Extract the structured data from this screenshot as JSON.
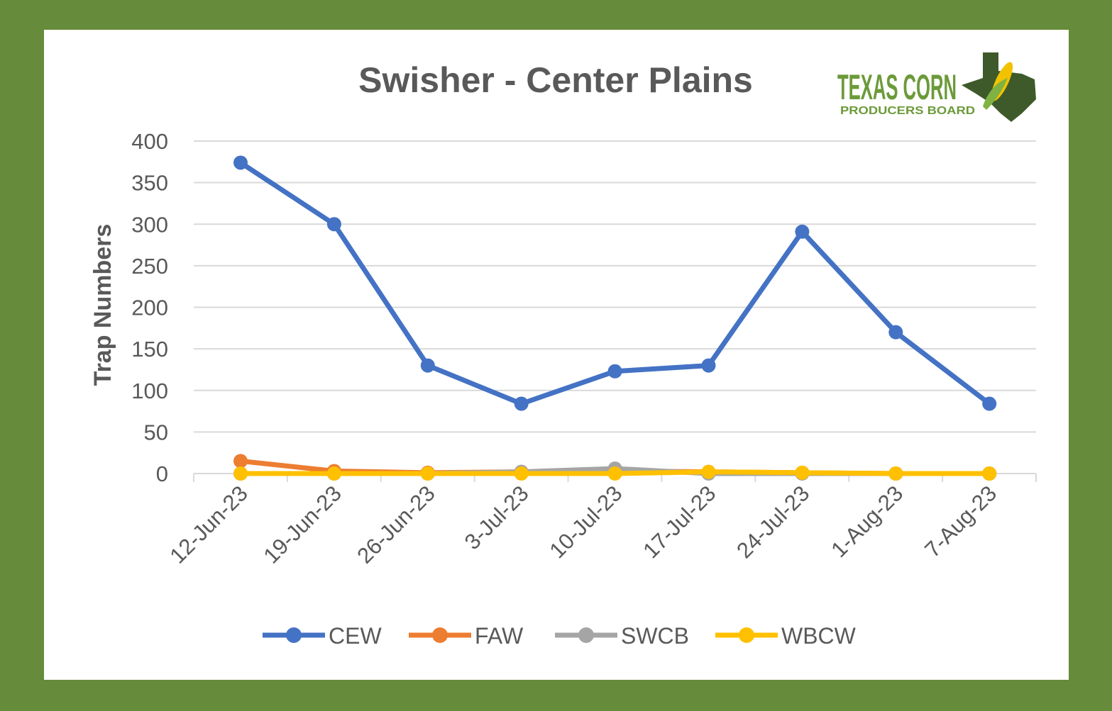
{
  "logo": {
    "line1": "TEXAS CORN",
    "line2": "PRODUCERS BOARD"
  },
  "chart_data": {
    "type": "line",
    "title": "Swisher - Center Plains",
    "xlabel": "",
    "ylabel": "Trap Numbers",
    "ylim": [
      0,
      400
    ],
    "yticks": [
      0,
      50,
      100,
      150,
      200,
      250,
      300,
      350,
      400
    ],
    "grid": true,
    "legend_position": "bottom",
    "categories": [
      "12-Jun-23",
      "19-Jun-23",
      "26-Jun-23",
      "3-Jul-23",
      "10-Jul-23",
      "17-Jul-23",
      "24-Jul-23",
      "1-Aug-23",
      "7-Aug-23"
    ],
    "series": [
      {
        "name": "CEW",
        "color": "#4472c4",
        "values": [
          374,
          300,
          130,
          84,
          123,
          130,
          291,
          170,
          84
        ]
      },
      {
        "name": "FAW",
        "color": "#ed7d31",
        "values": [
          15,
          3,
          1,
          2,
          3,
          2,
          1,
          0,
          0
        ]
      },
      {
        "name": "SWCB",
        "color": "#a5a5a5",
        "values": [
          0,
          0,
          0,
          2,
          6,
          0,
          0,
          0,
          0
        ]
      },
      {
        "name": "WBCW",
        "color": "#ffc000",
        "values": [
          0,
          0,
          0,
          0,
          0,
          2,
          1,
          0,
          0
        ]
      }
    ]
  }
}
